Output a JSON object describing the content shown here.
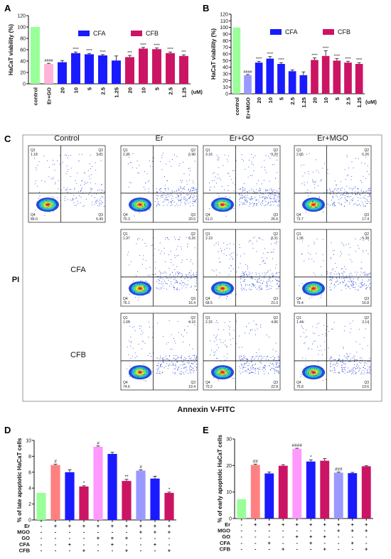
{
  "panels": {
    "A": {
      "letter": "A",
      "chart_data": {
        "type": "bar",
        "ylabel": "HaCaT viability (%)",
        "ylim": [
          0,
          120
        ],
        "yticks": [
          0,
          20,
          40,
          60,
          80,
          100,
          120
        ],
        "unit_label": "(uM)",
        "legend": [
          {
            "name": "CFA",
            "color": "#1a1aff"
          },
          {
            "name": "CFB",
            "color": "#cc1464"
          }
        ],
        "categories": [
          "control",
          "Er+GO",
          "20",
          "10",
          "5",
          "2.5",
          "1.25",
          "20",
          "10",
          "5",
          "2.5",
          "1.25"
        ],
        "values": [
          100,
          35,
          38,
          54,
          52,
          50,
          41,
          47,
          62,
          61,
          54,
          49
        ],
        "errors": [
          0,
          1,
          3,
          2,
          1.5,
          1.5,
          8,
          3,
          2,
          2,
          2,
          2
        ],
        "colors": [
          "#99ff99",
          "#ffb3d9",
          "#1a1aff",
          "#1a1aff",
          "#1a1aff",
          "#1a1aff",
          "#1a1aff",
          "#cc1464",
          "#cc1464",
          "#cc1464",
          "#cc1464",
          "#cc1464"
        ],
        "sig": [
          "",
          "####",
          "",
          "****",
          "****",
          "****",
          "",
          "***",
          "****",
          "****",
          "****",
          "***"
        ]
      }
    },
    "B": {
      "letter": "B",
      "chart_data": {
        "type": "bar",
        "ylabel": "HaCaT viability (%)",
        "ylim": [
          0,
          120
        ],
        "yticks": [
          0,
          10,
          20,
          30,
          40,
          50,
          60,
          70,
          80,
          90,
          100,
          110,
          120
        ],
        "unit_label": "(uM)",
        "legend": [
          {
            "name": "CFA",
            "color": "#1a1aff"
          },
          {
            "name": "CFB",
            "color": "#cc1464"
          }
        ],
        "categories": [
          "control",
          "Er+MGO",
          "20",
          "10",
          "5",
          "2.5",
          "1.25",
          "20",
          "10",
          "5",
          "2.5",
          "1.25"
        ],
        "values": [
          100,
          28,
          47,
          53,
          45,
          34,
          28,
          51,
          57,
          50,
          47,
          45
        ],
        "errors": [
          0,
          1,
          2,
          3,
          2,
          2,
          5,
          3,
          8,
          3,
          2,
          2
        ],
        "colors": [
          "#99ff99",
          "#9999ff",
          "#1a1aff",
          "#1a1aff",
          "#1a1aff",
          "#1a1aff",
          "#1a1aff",
          "#cc1464",
          "#cc1464",
          "#cc1464",
          "#cc1464",
          "#cc1464"
        ],
        "sig": [
          "",
          "####",
          "****",
          "****",
          "****",
          "",
          "",
          "****",
          "****",
          "****",
          "****",
          "****"
        ]
      }
    },
    "C": {
      "letter": "C",
      "column_headers": [
        "Control",
        "Er",
        "Er+GO",
        "Er+MGO"
      ],
      "row_labels": [
        "CFA",
        "CFB"
      ],
      "ylabel": "PI",
      "xlabel": "Annexin V-FITC",
      "plots": [
        {
          "row": 0,
          "col": 0,
          "q1": "1.18",
          "q2": "3.31",
          "q3": "6.49",
          "q4": "89.0"
        },
        {
          "row": 0,
          "col": 1,
          "q1": "2.26",
          "q2": "6.90",
          "q3": "20.5",
          "q4": "70.3"
        },
        {
          "row": 0,
          "col": 2,
          "q1": "3.16",
          "q2": "9.20",
          "q3": "26.6",
          "q4": "61.0"
        },
        {
          "row": 0,
          "col": 3,
          "q1": "2.65",
          "q2": "6.26",
          "q3": "17.4",
          "q4": "73.7"
        },
        {
          "row": 1,
          "col": 1,
          "q1": "1.27",
          "q2": "6.26",
          "q3": "16.4",
          "q4": "76.1"
        },
        {
          "row": 1,
          "col": 2,
          "q1": "2.19",
          "q2": "8.31",
          "q3": "21.0",
          "q4": "68.5"
        },
        {
          "row": 1,
          "col": 3,
          "q1": "1.36",
          "q2": "5.38",
          "q3": "16.8",
          "q4": "76.4"
        },
        {
          "row": 2,
          "col": 1,
          "q1": "1.60",
          "q2": "4.16",
          "q3": "19.4",
          "q4": "74.6"
        },
        {
          "row": 2,
          "col": 2,
          "q1": "2.15",
          "q2": "4.86",
          "q3": "22.8",
          "q4": "70.2"
        },
        {
          "row": 2,
          "col": 3,
          "q1": "1.44",
          "q2": "3.14",
          "q3": "19.6",
          "q4": "75.8"
        }
      ]
    },
    "D": {
      "letter": "D",
      "chart_data": {
        "type": "bar",
        "ylabel": "% of late apoptotic HaCaT cells",
        "ylim": [
          0,
          10
        ],
        "yticks": [
          0,
          2,
          4,
          6,
          8,
          10
        ],
        "values": [
          3.4,
          6.9,
          6.0,
          4.2,
          9.2,
          8.3,
          4.9,
          6.2,
          5.2,
          3.4
        ],
        "errors": [
          0,
          0.1,
          0.3,
          0.1,
          0.1,
          0.2,
          0.2,
          0.1,
          0.3,
          0.1
        ],
        "colors": [
          "#99ff99",
          "#ff8080",
          "#1a1aff",
          "#cc1464",
          "#ff99ff",
          "#1a1aff",
          "#cc1464",
          "#9999ff",
          "#1a1aff",
          "#cc1464"
        ],
        "sig": [
          "",
          "#",
          "",
          "*",
          "#",
          "",
          "**",
          "#",
          "",
          "*"
        ],
        "row_names": [
          "Er",
          "MGO",
          "GO",
          "CFA",
          "CFB"
        ],
        "matrix": [
          [
            "-",
            "+",
            "+",
            "+",
            "+",
            "+",
            "+",
            "+",
            "+",
            "+"
          ],
          [
            "-",
            "-",
            "-",
            "-",
            "-",
            "-",
            "-",
            "+",
            "+",
            "+"
          ],
          [
            "-",
            "-",
            "-",
            "-",
            "+",
            "+",
            "+",
            "-",
            "-",
            "-"
          ],
          [
            "-",
            "-",
            "+",
            "-",
            "-",
            "+",
            "-",
            "-",
            "+",
            "-"
          ],
          [
            "-",
            "-",
            "-",
            "+",
            "-",
            "-",
            "+",
            "-",
            "-",
            "+"
          ]
        ]
      }
    },
    "E": {
      "letter": "E",
      "chart_data": {
        "type": "bar",
        "ylabel": "% of early apoptotic HaCaT cells",
        "ylim": [
          0,
          30
        ],
        "yticks": [
          0,
          10,
          20,
          30
        ],
        "values": [
          7.3,
          20.2,
          17.0,
          19.9,
          26.3,
          21.5,
          21.8,
          17.3,
          17.1,
          19.7
        ],
        "errors": [
          0,
          0.3,
          0.5,
          0.4,
          0.2,
          0.6,
          0.8,
          0.2,
          0.3,
          0.2
        ],
        "colors": [
          "#99ff99",
          "#ff8080",
          "#1a1aff",
          "#cc1464",
          "#ff99ff",
          "#1a1aff",
          "#cc1464",
          "#9999ff",
          "#1a1aff",
          "#cc1464"
        ],
        "sig": [
          "",
          "##",
          "",
          "",
          "####",
          "*",
          "",
          "###",
          "",
          ""
        ],
        "row_names": [
          "Er",
          "MGO",
          "GO",
          "CFA",
          "CFB"
        ],
        "matrix": [
          [
            "-",
            "+",
            "+",
            "+",
            "+",
            "+",
            "+",
            "+",
            "+",
            "+"
          ],
          [
            "-",
            "-",
            "-",
            "-",
            "-",
            "-",
            "-",
            "+",
            "+",
            "+"
          ],
          [
            "-",
            "-",
            "-",
            "-",
            "+",
            "+",
            "+",
            "-",
            "-",
            "-"
          ],
          [
            "-",
            "-",
            "+",
            "-",
            "-",
            "+",
            "-",
            "-",
            "+",
            "-"
          ],
          [
            "-",
            "-",
            "-",
            "+",
            "-",
            "-",
            "+",
            "-",
            "-",
            "+"
          ]
        ]
      }
    }
  }
}
